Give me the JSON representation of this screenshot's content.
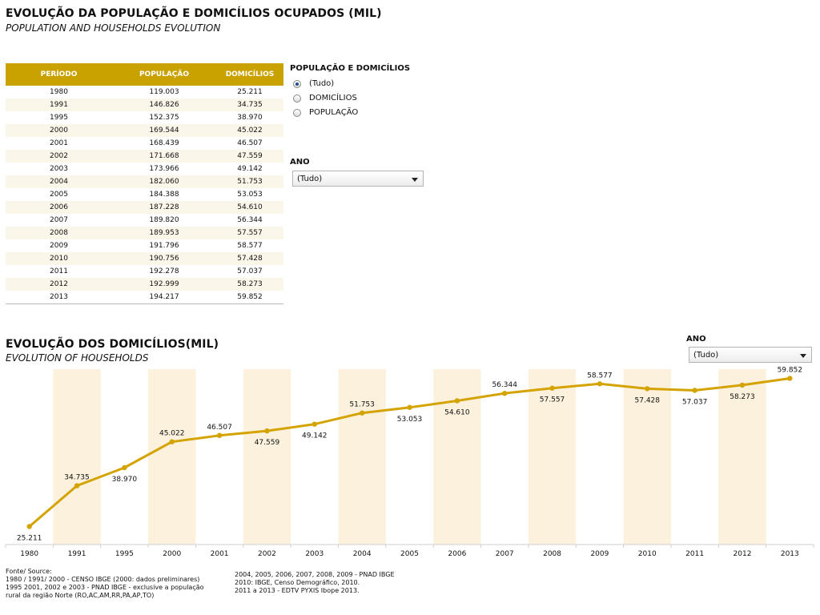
{
  "header": {
    "title": "EVOLUÇÃO DA POPULAÇÃO E DOMICÍLIOS OCUPADOS (MIL)",
    "subtitle": "POPULATION AND HOUSEHOLDS EVOLUTION"
  },
  "table": {
    "columns": [
      "PERÍODO",
      "POPULAÇÃO",
      "DOMICÍLIOS"
    ],
    "rows": [
      [
        "1980",
        "119.003",
        "25.211"
      ],
      [
        "1991",
        "146.826",
        "34.735"
      ],
      [
        "1995",
        "152.375",
        "38.970"
      ],
      [
        "2000",
        "169.544",
        "45.022"
      ],
      [
        "2001",
        "168.439",
        "46.507"
      ],
      [
        "2002",
        "171.668",
        "47.559"
      ],
      [
        "2003",
        "173.966",
        "49.142"
      ],
      [
        "2004",
        "182.060",
        "51.753"
      ],
      [
        "2005",
        "184.388",
        "53.053"
      ],
      [
        "2006",
        "187.228",
        "54.610"
      ],
      [
        "2007",
        "189.820",
        "56.344"
      ],
      [
        "2008",
        "189.953",
        "57.557"
      ],
      [
        "2009",
        "191.796",
        "58.577"
      ],
      [
        "2010",
        "190.756",
        "57.428"
      ],
      [
        "2011",
        "192.278",
        "57.037"
      ],
      [
        "2012",
        "192.999",
        "58.273"
      ],
      [
        "2013",
        "194.217",
        "59.852"
      ]
    ]
  },
  "filters": {
    "measure_label": "POPULAÇÃO E DOMICÍLIOS",
    "options": [
      "(Tudo)",
      "DOMICÍLIOS",
      "POPULAÇÃO"
    ],
    "selected": "(Tudo)",
    "year_label": "ANO",
    "year_value": "(Tudo)"
  },
  "chart_header": {
    "title": "EVOLUÇÃO DOS DOMICÍLIOS(MIL)",
    "subtitle": "EVOLUTION OF HOUSEHOLDS",
    "year_label": "ANO",
    "year_value": "(Tudo)"
  },
  "chart_data": {
    "type": "line",
    "x": [
      "1980",
      "1991",
      "1995",
      "2000",
      "2001",
      "2002",
      "2003",
      "2004",
      "2005",
      "2006",
      "2007",
      "2008",
      "2009",
      "2010",
      "2011",
      "2012",
      "2013"
    ],
    "series": [
      {
        "values": [
          25.211,
          34.735,
          38.97,
          45.022,
          46.507,
          47.559,
          49.142,
          51.753,
          53.053,
          54.61,
          56.344,
          57.557,
          58.577,
          57.428,
          57.037,
          58.273,
          59.852
        ]
      }
    ],
    "labels": [
      "25.211",
      "34.735",
      "38.970",
      "45.022",
      "46.507",
      "47.559",
      "49.142",
      "51.753",
      "53.053",
      "54.610",
      "56.344",
      "57.557",
      "58.577",
      "57.428",
      "57.037",
      "58.273",
      "59.852"
    ],
    "label_positions": [
      "below",
      "above",
      "below",
      "above",
      "above",
      "below",
      "below",
      "above",
      "below",
      "below",
      "above",
      "below",
      "above",
      "below",
      "below",
      "below",
      "above"
    ],
    "ylim": [
      21,
      62
    ],
    "grid": false,
    "alternating_bands": true,
    "colors": {
      "line": "#d4a300",
      "band": "#fbf1dc"
    }
  },
  "source": {
    "left": [
      "Fonte/ Source:",
      "1980 / 1991/ 2000 - CENSO IBGE (2000: dados preliminares)",
      "1995 2001, 2002 e 2003  - PNAD IBGE - exclusive a população",
      "rural da região Norte (RO,AC,AM,RR,PA,AP,TO)"
    ],
    "right": [
      "2004, 2005, 2006, 2007, 2008, 2009 - PNAD IBGE",
      "2010: IBGE, Censo Demográfico, 2010.",
      "2011 a 2013 - EDTV  PYXIS Ibope 2013."
    ]
  }
}
